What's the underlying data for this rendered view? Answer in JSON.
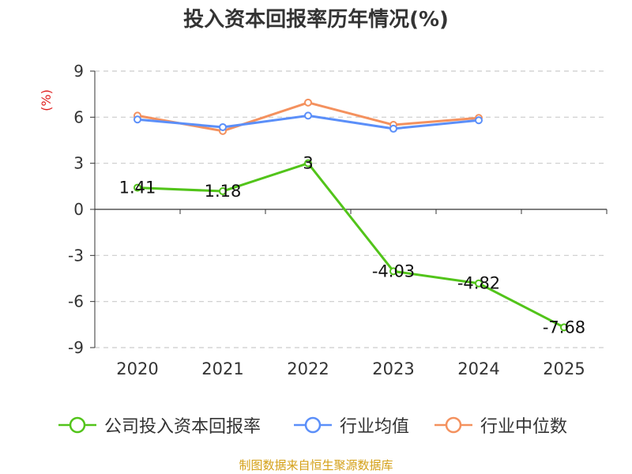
{
  "title": "投入资本回报率历年情况(%)",
  "source": "制图数据来自恒生聚源数据库",
  "chart_data": {
    "type": "line",
    "title": "投入资本回报率历年情况(%)",
    "ylabel": "(%)",
    "categories": [
      "2020",
      "2021",
      "2022",
      "2023",
      "2024",
      "2025"
    ],
    "ylim": [
      -9,
      9
    ],
    "yticks": [
      9,
      6,
      3,
      0,
      -3,
      -6,
      -9
    ],
    "grid": true,
    "legend_position": "bottom",
    "series": [
      {
        "name": "公司投入资本回报率",
        "color": "#52c41a",
        "values": [
          1.41,
          1.18,
          3,
          -4.03,
          -4.82,
          -7.68
        ],
        "labels": [
          "1.41",
          "1.18",
          "3",
          "-4.03",
          "-4.82",
          "-7.68"
        ]
      },
      {
        "name": "行业均值",
        "color": "#5b8ff9",
        "values": [
          5.85,
          5.35,
          6.1,
          5.25,
          5.8,
          null
        ]
      },
      {
        "name": "行业中位数",
        "color": "#f4915e",
        "values": [
          6.1,
          5.1,
          6.95,
          5.5,
          5.95,
          null
        ]
      }
    ]
  }
}
